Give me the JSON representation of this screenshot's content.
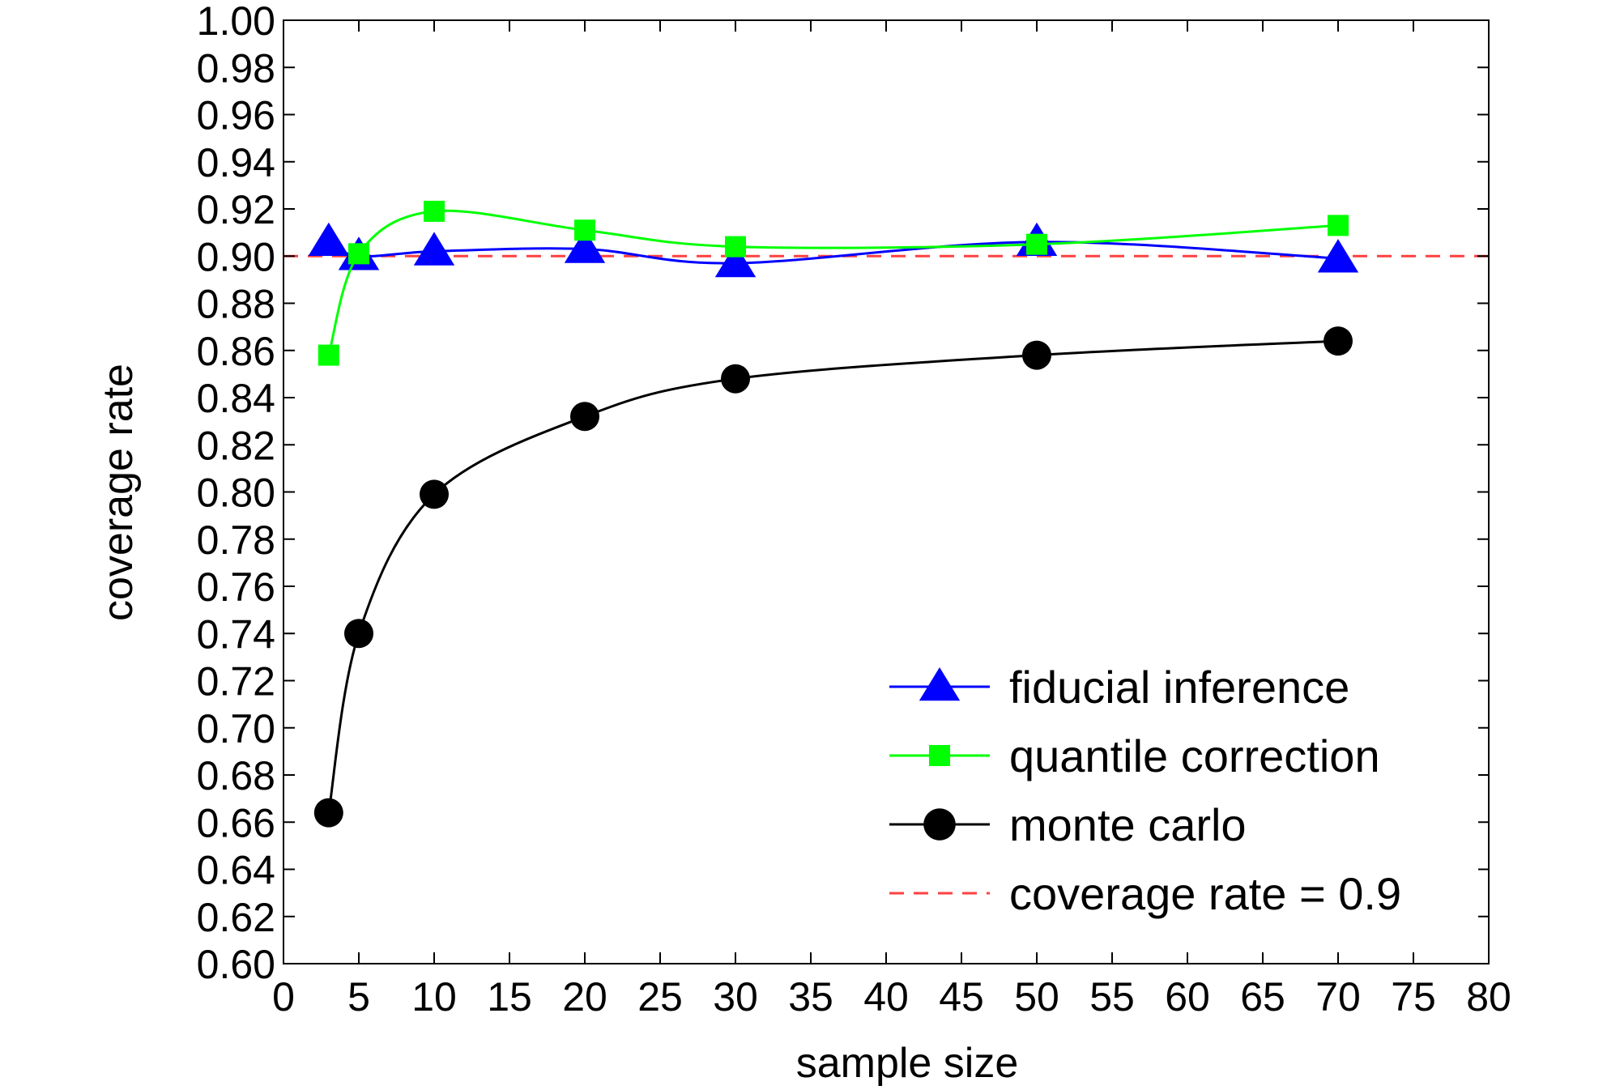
{
  "chart_data": {
    "type": "line",
    "xlabel": "sample size",
    "ylabel": "coverage rate",
    "xlim": [
      0,
      80
    ],
    "ylim": [
      0.6,
      1.0
    ],
    "xticks": [
      "0",
      "5",
      "10",
      "15",
      "20",
      "25",
      "30",
      "35",
      "40",
      "45",
      "50",
      "55",
      "60",
      "65",
      "70",
      "75",
      "80"
    ],
    "yticks": [
      "0.60",
      "0.62",
      "0.64",
      "0.66",
      "0.68",
      "0.70",
      "0.72",
      "0.74",
      "0.76",
      "0.78",
      "0.80",
      "0.82",
      "0.84",
      "0.86",
      "0.88",
      "0.90",
      "0.92",
      "0.94",
      "0.96",
      "0.98",
      "1.00"
    ],
    "grid": false,
    "legend_position": "bottom-right",
    "x": [
      3,
      5,
      10,
      20,
      30,
      50,
      70
    ],
    "series": [
      {
        "name": "fiducial inference",
        "color": "#0000ff",
        "marker": "triangle",
        "values": [
          0.906,
          0.9,
          0.902,
          0.903,
          0.897,
          0.906,
          0.899
        ]
      },
      {
        "name": "quantile correction",
        "color": "#00ff00",
        "marker": "square",
        "values": [
          0.858,
          0.901,
          0.919,
          0.911,
          0.904,
          0.905,
          0.913
        ]
      },
      {
        "name": "monte carlo",
        "color": "#000000",
        "marker": "circle",
        "values": [
          0.664,
          0.74,
          0.799,
          0.832,
          0.848,
          0.858,
          0.864
        ]
      }
    ],
    "reference_line": {
      "label": "coverage rate = 0.9",
      "value": 0.9,
      "color": "#ff4040",
      "style": "dashed"
    }
  }
}
